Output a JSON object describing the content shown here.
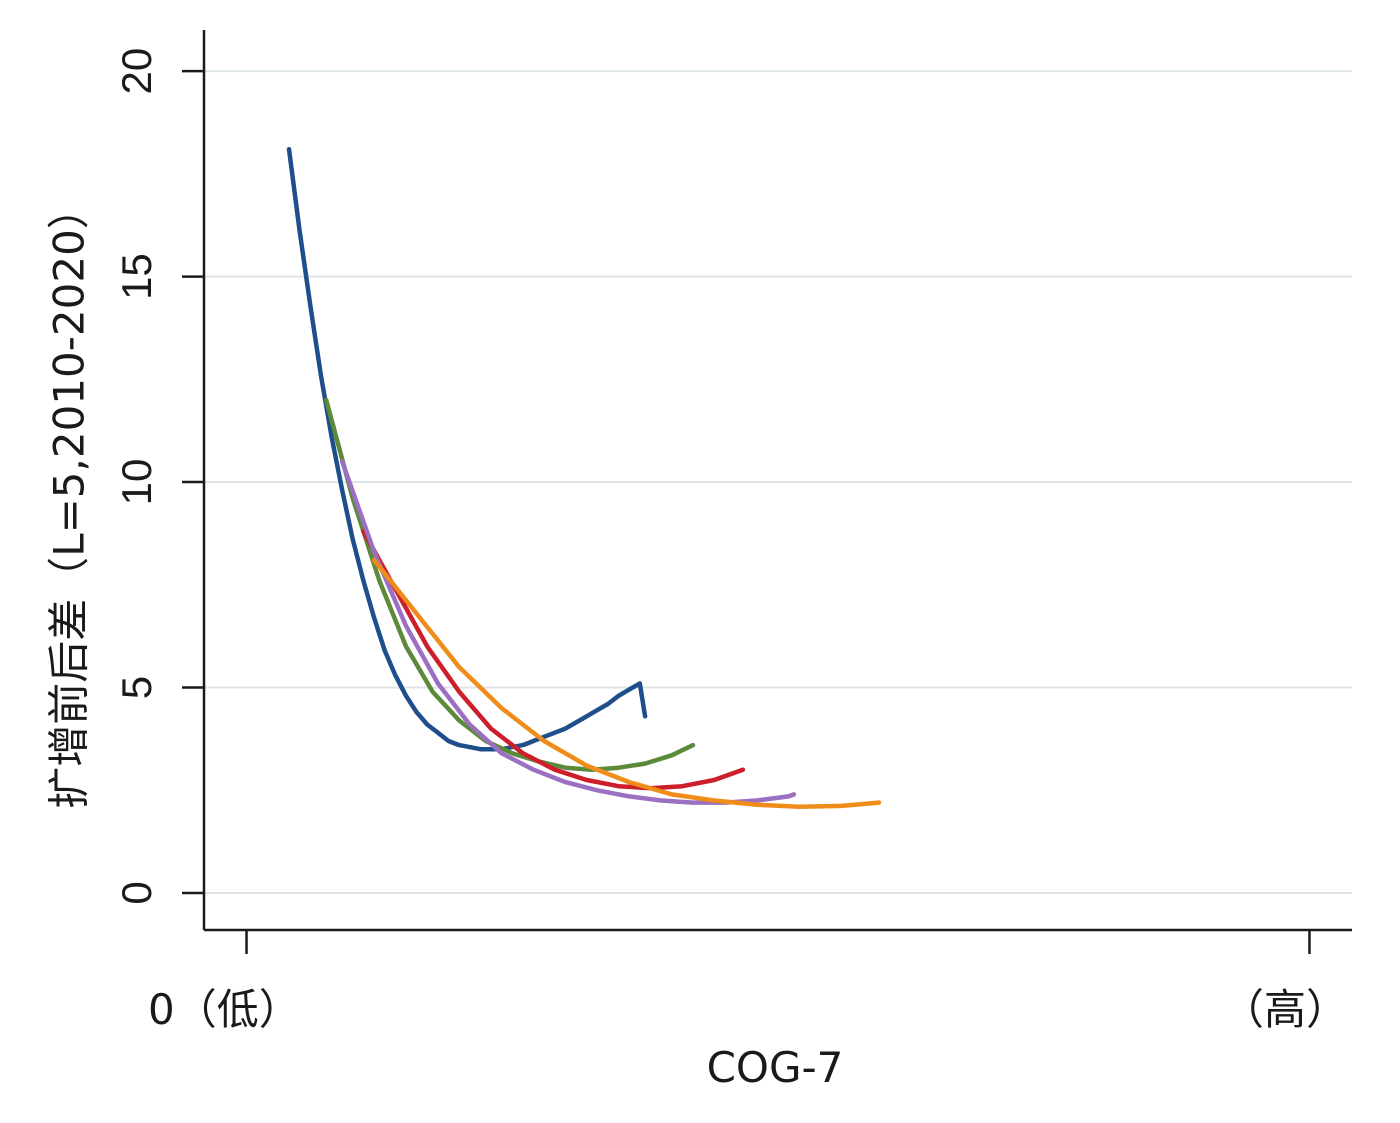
{
  "chart_data": {
    "type": "line",
    "xlabel": "COG-7",
    "ylabel": "扩增前后差（L=5,2010-2020）",
    "ylim": [
      -0.9,
      21
    ],
    "yticks": [
      "0",
      "5",
      "10",
      "15",
      "20"
    ],
    "xticks": [
      "0（低）",
      "（高）"
    ],
    "grid": true,
    "legend": "none",
    "colors": [
      "#1f4e8c",
      "#5b8a3a",
      "#cc1f2b",
      "#9b6fc2",
      "#f08c1a"
    ],
    "series": [
      {
        "x": [
          0.04,
          0.05,
          0.06,
          0.07,
          0.08,
          0.09,
          0.1,
          0.11,
          0.12,
          0.13,
          0.14,
          0.15,
          0.16,
          0.17,
          0.18,
          0.19,
          0.2,
          0.21,
          0.22,
          0.23,
          0.24,
          0.25,
          0.26,
          0.27,
          0.28,
          0.29,
          0.3,
          0.31,
          0.32,
          0.33,
          0.34,
          0.35,
          0.36,
          0.37,
          0.375
        ],
        "y": [
          18.1,
          16.1,
          14.3,
          12.6,
          11.1,
          9.8,
          8.6,
          7.6,
          6.7,
          5.9,
          5.3,
          4.8,
          4.4,
          4.1,
          3.9,
          3.7,
          3.6,
          3.55,
          3.5,
          3.5,
          3.5,
          3.55,
          3.6,
          3.7,
          3.8,
          3.9,
          4.0,
          4.15,
          4.3,
          4.45,
          4.6,
          4.8,
          4.95,
          5.1,
          4.3
        ]
      },
      {
        "x": [
          0.075,
          0.1,
          0.125,
          0.15,
          0.175,
          0.2,
          0.225,
          0.25,
          0.275,
          0.3,
          0.325,
          0.35,
          0.375,
          0.4,
          0.42
        ],
        "y": [
          12.0,
          9.6,
          7.6,
          6.0,
          4.9,
          4.2,
          3.7,
          3.4,
          3.2,
          3.05,
          3.0,
          3.05,
          3.15,
          3.35,
          3.6
        ]
      },
      {
        "x": [
          0.11,
          0.14,
          0.17,
          0.2,
          0.23,
          0.26,
          0.29,
          0.32,
          0.35,
          0.38,
          0.41,
          0.44,
          0.467
        ],
        "y": [
          8.8,
          7.4,
          6.0,
          4.9,
          4.0,
          3.4,
          3.0,
          2.75,
          2.6,
          2.55,
          2.6,
          2.75,
          3.0
        ]
      },
      {
        "x": [
          0.09,
          0.12,
          0.15,
          0.18,
          0.21,
          0.24,
          0.27,
          0.3,
          0.33,
          0.36,
          0.39,
          0.42,
          0.45,
          0.48,
          0.51,
          0.515
        ],
        "y": [
          10.5,
          8.3,
          6.5,
          5.1,
          4.1,
          3.4,
          3.0,
          2.7,
          2.5,
          2.35,
          2.25,
          2.2,
          2.2,
          2.25,
          2.35,
          2.4
        ]
      },
      {
        "x": [
          0.12,
          0.16,
          0.2,
          0.24,
          0.28,
          0.32,
          0.36,
          0.4,
          0.44,
          0.48,
          0.52,
          0.56,
          0.595
        ],
        "y": [
          8.1,
          6.8,
          5.5,
          4.5,
          3.7,
          3.1,
          2.7,
          2.4,
          2.25,
          2.15,
          2.1,
          2.12,
          2.2
        ]
      }
    ],
    "xlim": [
      -0.04,
      1.04
    ]
  }
}
